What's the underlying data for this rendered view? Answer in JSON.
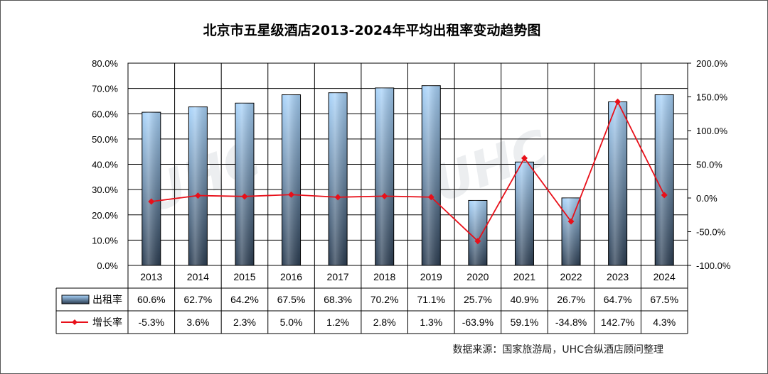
{
  "chart_data": {
    "type": "bar",
    "title": "北京市五星级酒店2013-2024年平均出租率变动趋势图",
    "categories": [
      "2013",
      "2014",
      "2015",
      "2016",
      "2017",
      "2018",
      "2019",
      "2020",
      "2021",
      "2022",
      "2023",
      "2024"
    ],
    "series": [
      {
        "name": "出租率",
        "type": "bar",
        "axis": "left",
        "values": [
          60.6,
          62.7,
          64.2,
          67.5,
          68.3,
          70.2,
          71.1,
          25.7,
          40.9,
          26.7,
          64.7,
          67.5
        ],
        "labels": [
          "60.6%",
          "62.7%",
          "64.2%",
          "67.5%",
          "68.3%",
          "70.2%",
          "71.1%",
          "25.7%",
          "40.9%",
          "26.7%",
          "64.7%",
          "67.5%"
        ]
      },
      {
        "name": "增长率",
        "type": "line",
        "axis": "right",
        "values": [
          -5.3,
          3.6,
          2.3,
          5.0,
          1.2,
          2.8,
          1.3,
          -63.9,
          59.1,
          -34.8,
          142.7,
          4.3
        ],
        "labels": [
          "-5.3%",
          "3.6%",
          "2.3%",
          "5.0%",
          "1.2%",
          "2.8%",
          "1.3%",
          "-63.9%",
          "59.1%",
          "-34.8%",
          "142.7%",
          "4.3%"
        ]
      }
    ],
    "y_left": {
      "min": 0,
      "max": 80,
      "ticks": [
        "0.0%",
        "10.0%",
        "20.0%",
        "30.0%",
        "40.0%",
        "50.0%",
        "60.0%",
        "70.0%",
        "80.0%"
      ]
    },
    "y_right": {
      "min": -100,
      "max": 200,
      "ticks": [
        "-100.0%",
        "-50.0%",
        "0.0%",
        "50.0%",
        "100.0%",
        "150.0%",
        "200.0%"
      ]
    },
    "grid": true,
    "legend": "data-table",
    "source": "数据来源：国家旅游局，UHC合纵酒店顾问整理",
    "watermark": "UHC",
    "colors": {
      "bar_top": "#a9d4fb",
      "bar_bottom": "#2b3d52",
      "line": "#e8101a",
      "grid": "#000000"
    }
  }
}
